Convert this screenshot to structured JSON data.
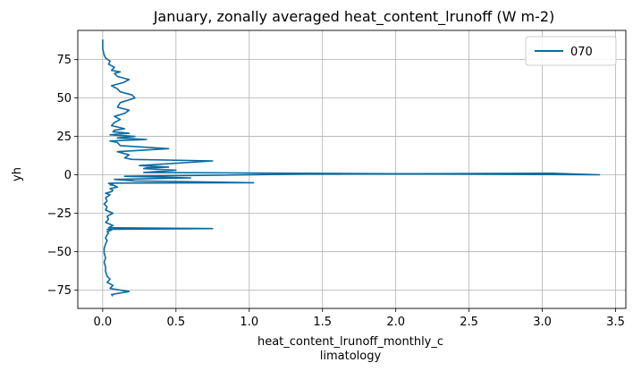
{
  "chart_data": {
    "type": "line",
    "title": "January, zonally averaged heat_content_lrunoff (W m-2)",
    "xlabel_line1": "heat_content_lrunoff_monthly_c",
    "xlabel_line2": "limatology",
    "ylabel": "yh",
    "xlim": [
      -0.17,
      3.57
    ],
    "ylim": [
      -87,
      94
    ],
    "xticks": [
      0.0,
      0.5,
      1.0,
      1.5,
      2.0,
      2.5,
      3.0,
      3.5
    ],
    "xtick_labels": [
      "0.0",
      "0.5",
      "1.0",
      "1.5",
      "2.0",
      "2.5",
      "3.0",
      "3.5"
    ],
    "yticks": [
      -75,
      -50,
      -25,
      0,
      25,
      50,
      75
    ],
    "ytick_labels": [
      "−75",
      "−50",
      "−25",
      "0",
      "25",
      "50",
      "75"
    ],
    "grid": true,
    "legend_position": "top-right",
    "series": [
      {
        "name": "070",
        "color": "#0a6aa1",
        "x": [
          0.07,
          0.06,
          0.18,
          0.05,
          0.07,
          0.03,
          0.05,
          0.03,
          0.02,
          0.02,
          0.01,
          0.02,
          0.01,
          0.01,
          0.02,
          0.03,
          0.02,
          0.03,
          0.04,
          0.03,
          0.06,
          0.03,
          0.75,
          0.04,
          0.07,
          0.02,
          0.04,
          0.03,
          0.07,
          0.02,
          0.03,
          0.01,
          0.03,
          0.02,
          0.05,
          0.02,
          0.06,
          0.07,
          0.05,
          0.1,
          0.08,
          0.05,
          0.07,
          0.06,
          0.04,
          0.08,
          1.03,
          0.22,
          0.08,
          0.6,
          0.15,
          1.4,
          3.06,
          3.39,
          0.28,
          0.5,
          0.28,
          0.3,
          0.45,
          0.25,
          0.75,
          0.2,
          0.15,
          0.18,
          0.1,
          0.45,
          0.12,
          0.1,
          0.05,
          0.3,
          0.1,
          0.22,
          0.05,
          0.18,
          0.07,
          0.08,
          0.15,
          0.06,
          0.08,
          0.12,
          0.08,
          0.15,
          0.18,
          0.1,
          0.12,
          0.22,
          0.2,
          0.12,
          0.1,
          0.06,
          0.14,
          0.18,
          0.1,
          0.08,
          0.12,
          0.06,
          0.08,
          0.04,
          0.05,
          0.02,
          0.01,
          0.0,
          0.0
        ],
        "y": [
          -79,
          -78,
          -76,
          -74,
          -72,
          -70,
          -68,
          -66,
          -63,
          -60,
          -57,
          -54,
          -51,
          -48,
          -45,
          -43,
          -41,
          -39,
          -38,
          -37,
          -36,
          -35.5,
          -35,
          -34.5,
          -33,
          -31,
          -29,
          -27,
          -25,
          -23,
          -21,
          -19,
          -17,
          -15,
          -13,
          -12,
          -11,
          -10,
          -9,
          -8,
          -7,
          -6.5,
          -6,
          -5.8,
          -5.6,
          -5.4,
          -5.2,
          -4,
          -3,
          -2,
          -1,
          0.5,
          1,
          0,
          1.5,
          3,
          4,
          4.5,
          5,
          6,
          9,
          10,
          11,
          13,
          15,
          17,
          19,
          21,
          22,
          23,
          24,
          25,
          26,
          27,
          28,
          29,
          30,
          32,
          34,
          36,
          38,
          40,
          42,
          44,
          47,
          50,
          52,
          54,
          56,
          58,
          60,
          62,
          64,
          66,
          67,
          68,
          70,
          72,
          74,
          76,
          78,
          82,
          88
        ]
      }
    ]
  }
}
